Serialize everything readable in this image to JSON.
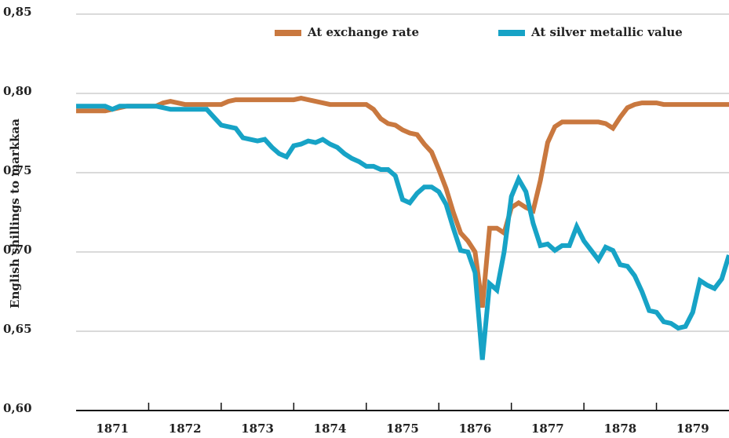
{
  "chart_data": {
    "type": "line",
    "y_label": "English shillings to markkaa",
    "x": [
      1871.0,
      1871.1,
      1871.2,
      1871.3,
      1871.4,
      1871.5,
      1871.6,
      1871.7,
      1871.8,
      1871.9,
      1872.0,
      1872.1,
      1872.2,
      1872.3,
      1872.4,
      1872.5,
      1872.6,
      1872.7,
      1872.8,
      1872.9,
      1873.0,
      1873.1,
      1873.2,
      1873.3,
      1873.4,
      1873.5,
      1873.6,
      1873.7,
      1873.8,
      1873.9,
      1874.0,
      1874.1,
      1874.2,
      1874.3,
      1874.4,
      1874.5,
      1874.6,
      1874.7,
      1874.8,
      1874.9,
      1875.0,
      1875.1,
      1875.2,
      1875.3,
      1875.4,
      1875.5,
      1875.6,
      1875.7,
      1875.8,
      1875.9,
      1876.0,
      1876.1,
      1876.2,
      1876.3,
      1876.4,
      1876.5,
      1876.6,
      1876.7,
      1876.8,
      1876.9,
      1877.0,
      1877.1,
      1877.2,
      1877.3,
      1877.4,
      1877.5,
      1877.6,
      1877.7,
      1877.8,
      1877.9,
      1878.0,
      1878.1,
      1878.2,
      1878.3,
      1878.4,
      1878.5,
      1878.6,
      1878.7,
      1878.8,
      1878.9,
      1879.0,
      1879.1,
      1879.2,
      1879.3,
      1879.4,
      1879.5,
      1879.6,
      1879.7,
      1879.8,
      1879.9,
      1880.0
    ],
    "series": [
      {
        "name": "At exchange rate",
        "color": "#c9783f",
        "values": [
          0.789,
          0.789,
          0.789,
          0.789,
          0.789,
          0.79,
          0.791,
          0.792,
          0.792,
          0.792,
          0.792,
          0.792,
          0.794,
          0.795,
          0.794,
          0.793,
          0.793,
          0.793,
          0.793,
          0.793,
          0.793,
          0.795,
          0.796,
          0.796,
          0.796,
          0.796,
          0.796,
          0.796,
          0.796,
          0.796,
          0.796,
          0.797,
          0.796,
          0.795,
          0.794,
          0.793,
          0.793,
          0.793,
          0.793,
          0.793,
          0.793,
          0.79,
          0.784,
          0.781,
          0.78,
          0.777,
          0.775,
          0.774,
          0.768,
          0.763,
          0.752,
          0.74,
          0.725,
          0.712,
          0.707,
          0.7,
          0.665,
          0.715,
          0.715,
          0.712,
          0.728,
          0.731,
          0.728,
          0.726,
          0.745,
          0.769,
          0.779,
          0.782,
          0.782,
          0.782,
          0.782,
          0.782,
          0.782,
          0.781,
          0.778,
          0.785,
          0.791,
          0.793,
          0.794,
          0.794,
          0.794,
          0.793,
          0.793,
          0.793,
          0.793,
          0.793,
          0.793,
          0.793,
          0.793,
          0.793,
          0.793
        ]
      },
      {
        "name": "At silver metallic value",
        "color": "#17a3c6",
        "values": [
          0.792,
          0.792,
          0.792,
          0.792,
          0.792,
          0.79,
          0.792,
          0.792,
          0.792,
          0.792,
          0.792,
          0.792,
          0.791,
          0.79,
          0.79,
          0.79,
          0.79,
          0.79,
          0.79,
          0.785,
          0.78,
          0.779,
          0.778,
          0.772,
          0.771,
          0.77,
          0.771,
          0.766,
          0.762,
          0.76,
          0.767,
          0.768,
          0.77,
          0.769,
          0.771,
          0.768,
          0.766,
          0.762,
          0.759,
          0.757,
          0.754,
          0.754,
          0.752,
          0.752,
          0.748,
          0.733,
          0.731,
          0.737,
          0.741,
          0.741,
          0.738,
          0.73,
          0.715,
          0.701,
          0.7,
          0.687,
          0.632,
          0.68,
          0.676,
          0.7,
          0.735,
          0.746,
          0.738,
          0.718,
          0.704,
          0.705,
          0.701,
          0.704,
          0.704,
          0.716,
          0.707,
          0.701,
          0.695,
          0.703,
          0.701,
          0.692,
          0.691,
          0.685,
          0.675,
          0.663,
          0.662,
          0.656,
          0.655,
          0.652,
          0.653,
          0.662,
          0.682,
          0.679,
          0.677,
          0.683,
          0.698
        ]
      }
    ],
    "xlim": [
      1871,
      1880
    ],
    "xticks": [
      {
        "value": 1871.5,
        "label": "1871"
      },
      {
        "value": 1872.5,
        "label": "1872"
      },
      {
        "value": 1873.5,
        "label": "1873"
      },
      {
        "value": 1874.5,
        "label": "1874"
      },
      {
        "value": 1875.5,
        "label": "1875"
      },
      {
        "value": 1876.5,
        "label": "1876"
      },
      {
        "value": 1877.5,
        "label": "1877"
      },
      {
        "value": 1878.5,
        "label": "1878"
      },
      {
        "value": 1879.5,
        "label": "1879"
      }
    ],
    "ylim": [
      0.6,
      0.85
    ],
    "yticks": [
      {
        "value": 0.6,
        "label": "0,60"
      },
      {
        "value": 0.65,
        "label": "0,65"
      },
      {
        "value": 0.7,
        "label": "0,70"
      },
      {
        "value": 0.75,
        "label": "0,75"
      },
      {
        "value": 0.8,
        "label": "0,80"
      },
      {
        "value": 0.85,
        "label": "0,85"
      }
    ],
    "grid": true,
    "legend": "top"
  }
}
